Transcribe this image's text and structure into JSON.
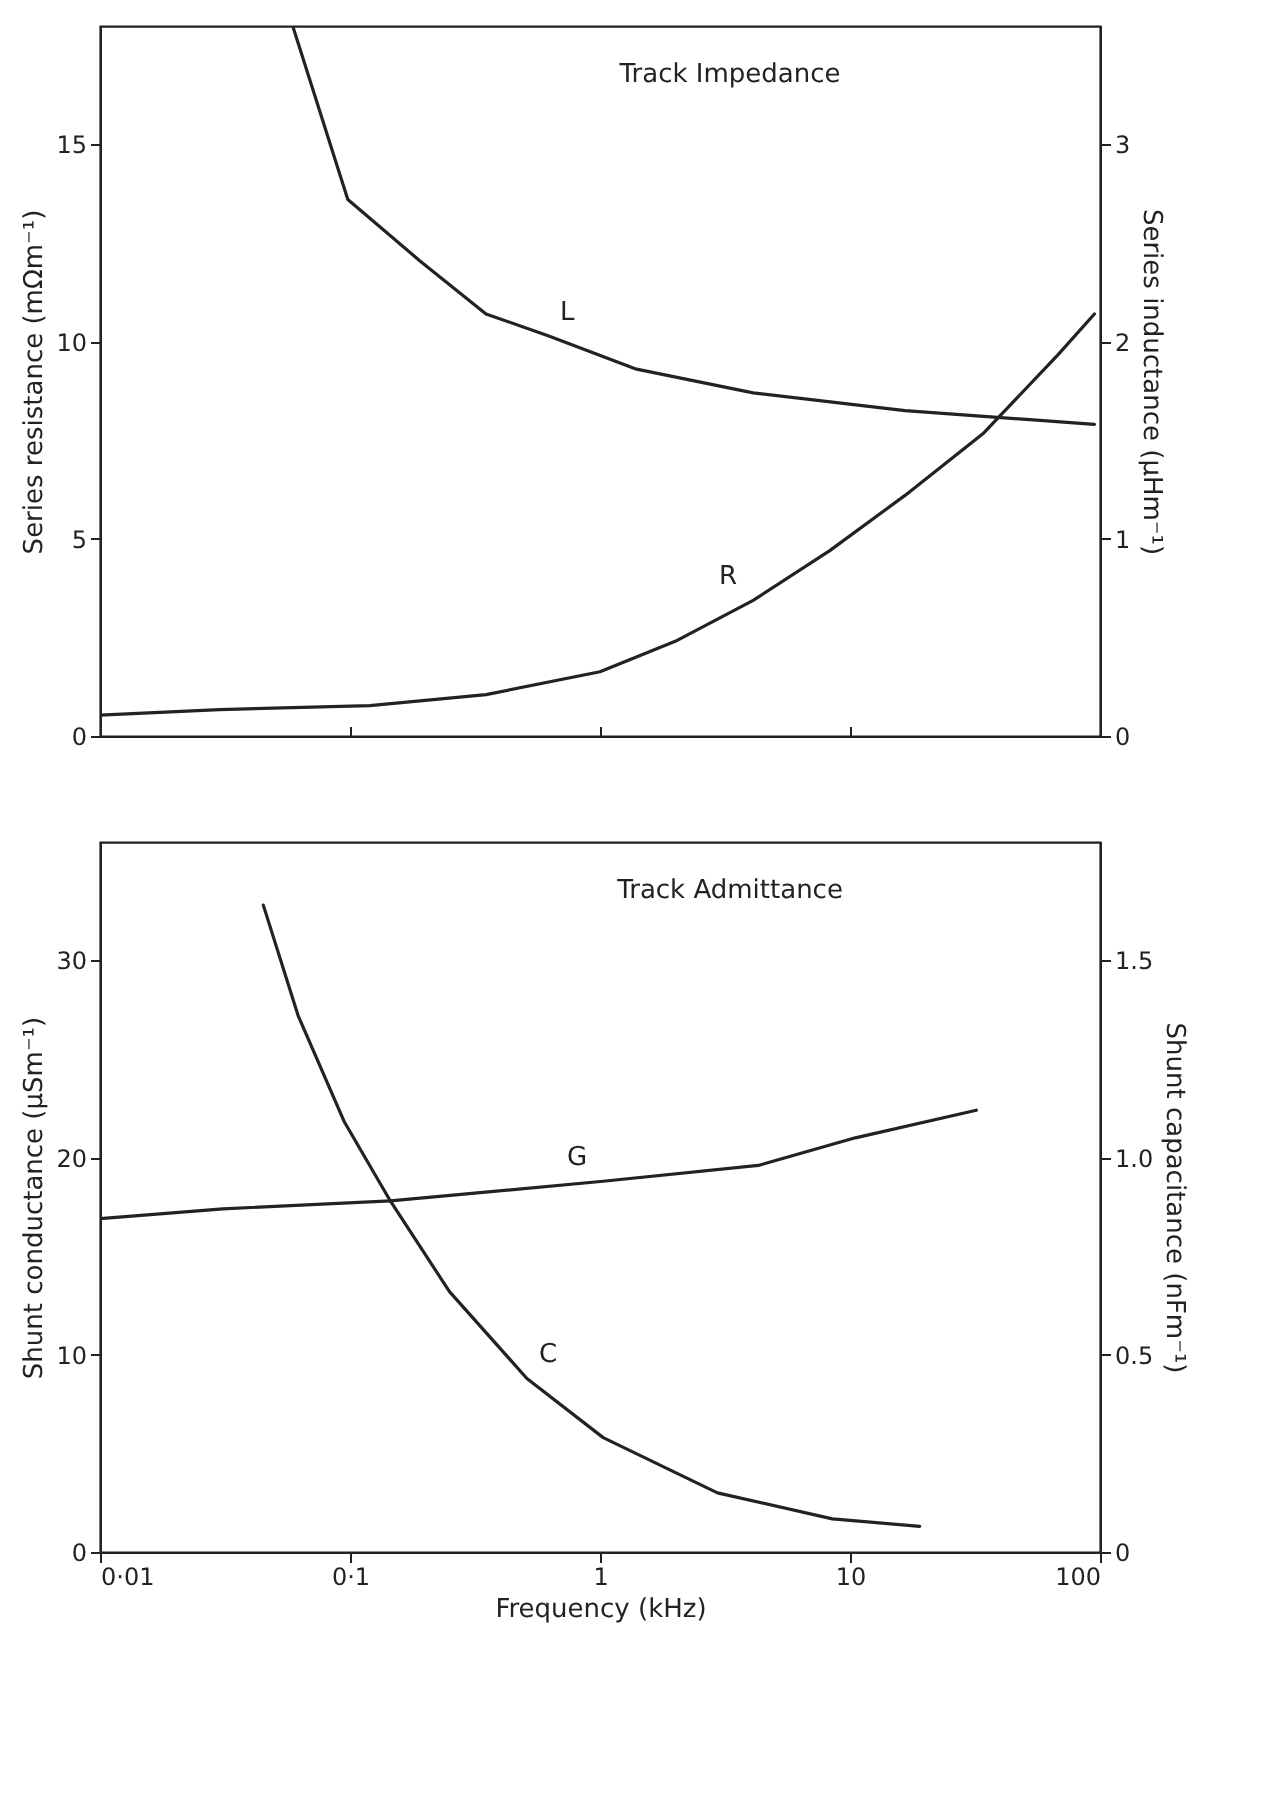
{
  "chart_data": [
    {
      "type": "line",
      "title": "Track Impedance",
      "ylabel": "Series resistance (mΩm⁻¹)",
      "y2label": "Series inductance (μHm⁻¹)",
      "log": "x",
      "tick_labels": "y",
      "xlim": [
        0.01,
        100
      ],
      "xticks": [
        {
          "value": 0.01,
          "label": null
        },
        {
          "value": 0.1,
          "label": null
        },
        {
          "value": 1,
          "label": null
        },
        {
          "value": 10,
          "label": null
        },
        {
          "value": 100,
          "label": null
        }
      ],
      "ylim": [
        0,
        18
      ],
      "yticks": [
        0,
        5,
        10,
        15
      ],
      "y2lim": [
        0,
        3.6
      ],
      "y2ticks": [
        0,
        1,
        2,
        3
      ],
      "series": [
        {
          "name": "L",
          "color": "#222222",
          "axis": "y2",
          "x": [
            0.059,
            0.098,
            0.19,
            0.35,
            0.62,
            1.4,
            4.1,
            16.6,
            95
          ],
          "values": [
            3.6,
            2.72,
            2.41,
            2.14,
            2.03,
            1.86,
            1.74,
            1.65,
            1.58
          ]
        },
        {
          "name": "R",
          "color": "#222222",
          "x": [
            0.01,
            0.03,
            0.12,
            0.35,
            1,
            2.0,
            4.1,
            8.3,
            16.6,
            34,
            68,
            95
          ],
          "values": [
            0.53,
            0.67,
            0.77,
            1.05,
            1.63,
            2.4,
            3.44,
            4.7,
            6.1,
            7.66,
            9.67,
            10.7
          ]
        }
      ]
    },
    {
      "type": "line",
      "title": "Track Admittance",
      "xlabel": "Frequency (kHz)",
      "ylabel": "Shunt conductance (μSm⁻¹)",
      "y2label": "Shunt capacitance (nFm⁻¹)",
      "log": "x",
      "xlim": [
        0.01,
        100
      ],
      "xticks": [
        {
          "value": 0.01,
          "label": "0·01"
        },
        {
          "value": 0.1,
          "label": "0·1"
        },
        1,
        10,
        100
      ],
      "ylim": [
        0,
        36
      ],
      "yticks": [
        0,
        10,
        20,
        30
      ],
      "y2lim": [
        0,
        1.8
      ],
      "y2ticks": [
        0,
        0.5,
        {
          "value": 1,
          "label": "1.0"
        },
        1.5
      ],
      "series": [
        {
          "name": "G",
          "color": "#222222",
          "x": [
            0.01,
            0.031,
            0.145,
            1.03,
            4.3,
            10.5,
            32
          ],
          "values": [
            16.9,
            17.4,
            17.8,
            18.8,
            19.6,
            21,
            22.4
          ]
        },
        {
          "name": "C",
          "color": "#222222",
          "axis": "y2",
          "x": [
            0.045,
            0.062,
            0.095,
            0.145,
            0.25,
            0.51,
            1.03,
            2.95,
            8.5,
            19
          ],
          "values": [
            1.64,
            1.36,
            1.09,
            0.89,
            0.66,
            0.44,
            0.29,
            0.15,
            0.084,
            0.065
          ]
        }
      ]
    }
  ]
}
